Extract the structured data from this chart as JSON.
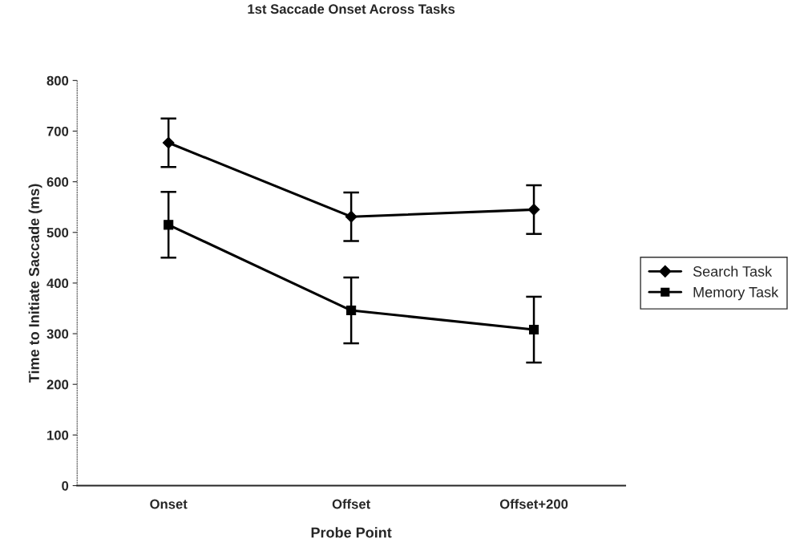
{
  "chart_data": {
    "type": "line",
    "title": "1st Saccade Onset Across Tasks",
    "xlabel": "Probe Point",
    "ylabel": "Time to Initiate Saccade (ms)",
    "categories": [
      "Onset",
      "Offset",
      "Offset+200"
    ],
    "series": [
      {
        "name": "Search Task",
        "color": "#000000",
        "marker": "diamond",
        "values": [
          677,
          531,
          545
        ],
        "errors": [
          48,
          48,
          48
        ]
      },
      {
        "name": "Memory Task",
        "color": "#000000",
        "marker": "square",
        "values": [
          515,
          346,
          308
        ],
        "errors": [
          65,
          65,
          65
        ]
      }
    ],
    "ylim": [
      0,
      800
    ],
    "yticks": [
      0,
      100,
      200,
      300,
      400,
      500,
      600,
      700,
      800
    ],
    "grid": false,
    "legend": "right",
    "line_style": "solid"
  }
}
